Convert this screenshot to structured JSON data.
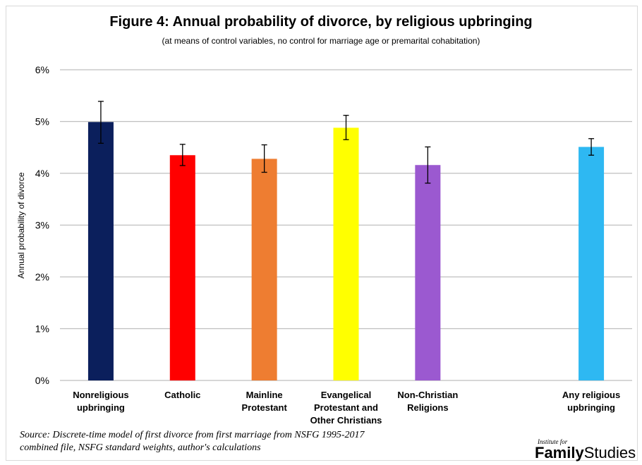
{
  "title": "Figure 4: Annual probability of divorce, by religious upbringing",
  "subtitle": "(at means of control variables, no control for marriage age or premarital cohabitation)",
  "source_lines": [
    "Source: Discrete-time model of first divorce from first marriage from NSFG 1995-2017",
    "combined file, NSFG standard weights, author's calculations"
  ],
  "logo": {
    "small": "Institute for",
    "bold": "Family",
    "light": "Studies"
  },
  "chart_data": {
    "type": "bar",
    "ylabel": "Annual probability of divorce",
    "ylim": [
      0,
      6
    ],
    "yticks": [
      0,
      1,
      2,
      3,
      4,
      5,
      6
    ],
    "ytick_labels": [
      "0%",
      "1%",
      "2%",
      "3%",
      "4%",
      "5%",
      "6%"
    ],
    "grid": true,
    "categories": [
      "Nonreligious\nupbringing",
      "Catholic",
      "Mainline\nProtestant",
      "Evangelical\nProtestant and\nOther Christians",
      "Non-Christian\nReligions",
      "",
      "Any religious\nupbringing"
    ],
    "values": [
      4.99,
      4.35,
      4.28,
      4.88,
      4.16,
      null,
      4.51
    ],
    "error_low": [
      4.58,
      4.15,
      4.02,
      4.65,
      3.81,
      null,
      4.35
    ],
    "error_high": [
      5.39,
      4.56,
      4.55,
      5.12,
      4.51,
      null,
      4.67
    ],
    "colors": [
      "#0b1f5c",
      "#ff0000",
      "#ee7d31",
      "#ffff00",
      "#9b59d0",
      null,
      "#2eb8f2"
    ]
  }
}
